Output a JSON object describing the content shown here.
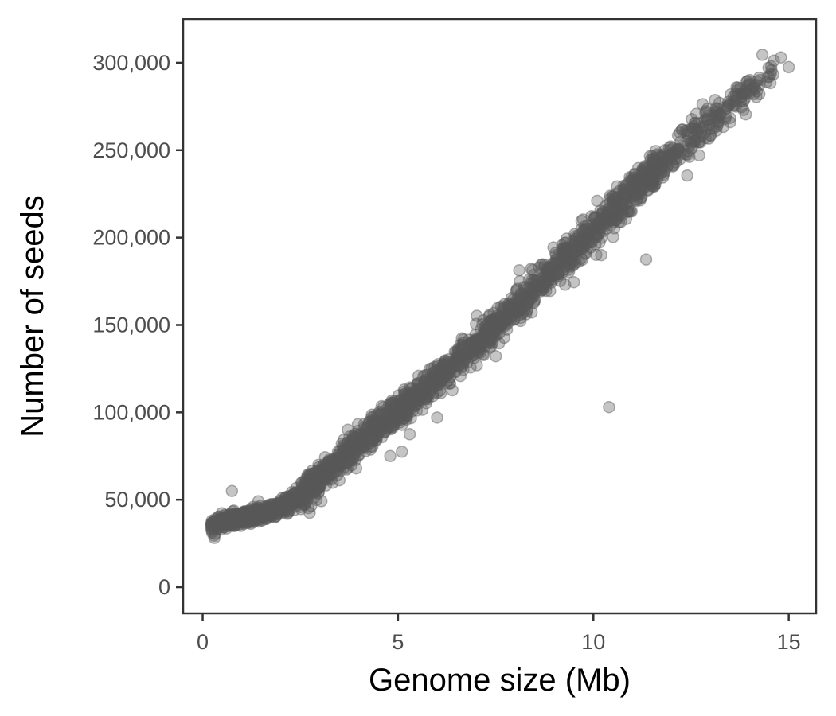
{
  "chart_data": {
    "type": "scatter",
    "title": "",
    "xlabel": "Genome size (Mb)",
    "ylabel": "Number of seeds",
    "xlim": [
      -0.5,
      15.7
    ],
    "ylim": [
      -15000,
      325000
    ],
    "x_ticks": [
      0,
      5,
      10,
      15
    ],
    "x_tick_labels": [
      "0",
      "5",
      "10",
      "15"
    ],
    "y_ticks": [
      0,
      50000,
      100000,
      150000,
      200000,
      250000,
      300000
    ],
    "y_tick_labels": [
      "0",
      "50,000",
      "100,000",
      "150,000",
      "200,000",
      "250,000",
      "300,000"
    ],
    "grid": false,
    "legend": "none",
    "point_color": "#595959",
    "point_opacity": 0.35,
    "trend_curve": [
      [
        0.25,
        36000
      ],
      [
        0.5,
        37500
      ],
      [
        1.0,
        39500
      ],
      [
        1.5,
        42000
      ],
      [
        2.0,
        45500
      ],
      [
        2.5,
        52000
      ],
      [
        3.0,
        62000
      ],
      [
        3.5,
        72000
      ],
      [
        4.0,
        82000
      ],
      [
        4.5,
        91500
      ],
      [
        5.0,
        101000
      ],
      [
        5.5,
        110000
      ],
      [
        6.0,
        119000
      ],
      [
        6.5,
        129000
      ],
      [
        7.0,
        139000
      ],
      [
        7.5,
        149000
      ],
      [
        8.0,
        160000
      ],
      [
        8.5,
        171000
      ],
      [
        9.0,
        182000
      ],
      [
        9.5,
        193000
      ],
      [
        10.0,
        204000
      ],
      [
        10.5,
        215000
      ],
      [
        11.0,
        226000
      ],
      [
        11.5,
        237000
      ],
      [
        12.0,
        247000
      ],
      [
        12.5,
        257000
      ],
      [
        13.0,
        267000
      ],
      [
        13.5,
        276000
      ],
      [
        14.0,
        285000
      ],
      [
        14.5,
        293000
      ],
      [
        15.0,
        300000
      ]
    ],
    "outliers": [
      {
        "x": 10.4,
        "y": 103000
      },
      {
        "x": 11.35,
        "y": 187500
      },
      {
        "x": 0.75,
        "y": 55000
      },
      {
        "x": 4.8,
        "y": 75000
      },
      {
        "x": 5.1,
        "y": 77500
      },
      {
        "x": 5.3,
        "y": 87500
      },
      {
        "x": 6.0,
        "y": 97000
      },
      {
        "x": 9.5,
        "y": 174500
      },
      {
        "x": 10.2,
        "y": 190000
      },
      {
        "x": 12.4,
        "y": 235500
      },
      {
        "x": 13.5,
        "y": 266000
      },
      {
        "x": 13.9,
        "y": 270500
      },
      {
        "x": 14.1,
        "y": 282000
      },
      {
        "x": 14.1,
        "y": 286000
      },
      {
        "x": 14.5,
        "y": 292000
      },
      {
        "x": 14.55,
        "y": 298000
      },
      {
        "x": 14.8,
        "y": 303000
      },
      {
        "x": 15.0,
        "y": 297500
      }
    ]
  }
}
